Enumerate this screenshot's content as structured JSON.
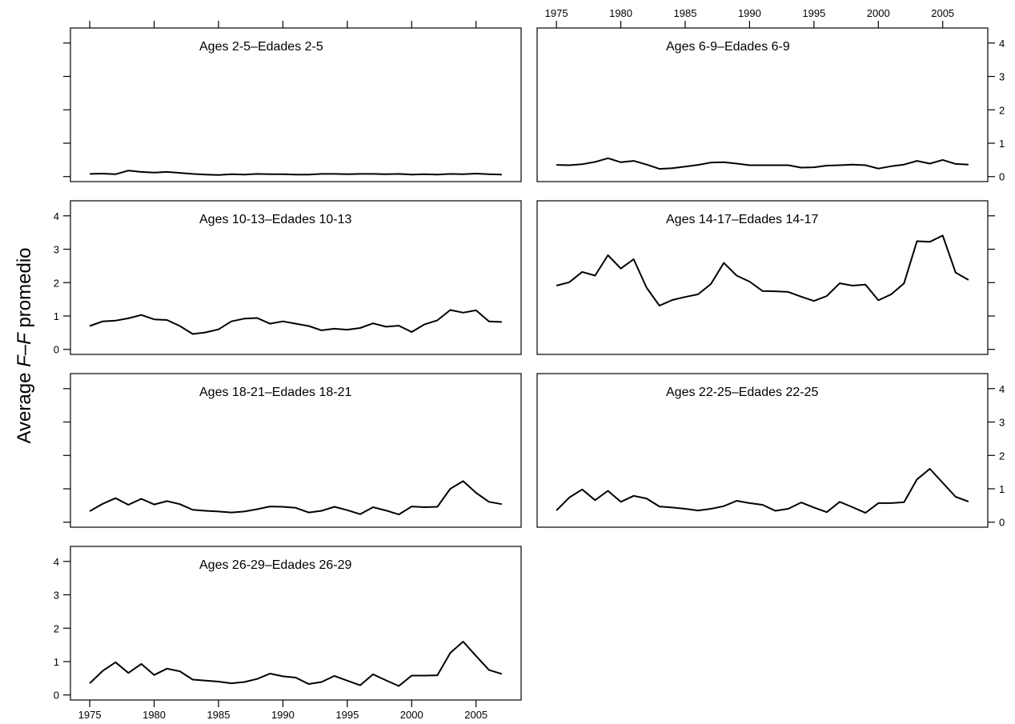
{
  "chart_data": {
    "type": "line",
    "ylabel_parts": [
      "Average ",
      "F",
      "–",
      "F",
      " promedio"
    ],
    "xlim": [
      1973.5,
      2008.5
    ],
    "ylim": [
      -0.15,
      4.45
    ],
    "x_ticks": [
      1975,
      1980,
      1985,
      1990,
      1995,
      2000,
      2005
    ],
    "y_ticks": [
      0,
      1,
      2,
      3,
      4
    ],
    "x": [
      1975,
      1976,
      1977,
      1978,
      1979,
      1980,
      1981,
      1982,
      1983,
      1984,
      1985,
      1986,
      1987,
      1988,
      1989,
      1990,
      1991,
      1992,
      1993,
      1994,
      1995,
      1996,
      1997,
      1998,
      1999,
      2000,
      2001,
      2002,
      2003,
      2004,
      2005,
      2006,
      2007
    ],
    "panels": [
      {
        "title": "Ages 2-5–Edades 2-5",
        "values": [
          0.08,
          0.09,
          0.07,
          0.18,
          0.14,
          0.12,
          0.14,
          0.11,
          0.08,
          0.06,
          0.05,
          0.07,
          0.06,
          0.08,
          0.07,
          0.07,
          0.06,
          0.06,
          0.08,
          0.08,
          0.07,
          0.08,
          0.08,
          0.07,
          0.08,
          0.06,
          0.07,
          0.06,
          0.08,
          0.07,
          0.09,
          0.07,
          0.06
        ]
      },
      {
        "title": "Ages 6-9–Edades 6-9",
        "values": [
          0.35,
          0.34,
          0.37,
          0.44,
          0.55,
          0.43,
          0.47,
          0.36,
          0.23,
          0.25,
          0.3,
          0.35,
          0.42,
          0.43,
          0.39,
          0.34,
          0.34,
          0.34,
          0.34,
          0.27,
          0.28,
          0.33,
          0.34,
          0.36,
          0.34,
          0.24,
          0.31,
          0.36,
          0.47,
          0.39,
          0.5,
          0.38,
          0.36
        ]
      },
      {
        "title": "Ages 10-13–Edades 10-13",
        "values": [
          0.7,
          0.84,
          0.86,
          0.93,
          1.03,
          0.9,
          0.88,
          0.7,
          0.46,
          0.51,
          0.6,
          0.84,
          0.92,
          0.94,
          0.77,
          0.84,
          0.77,
          0.7,
          0.57,
          0.62,
          0.59,
          0.64,
          0.78,
          0.68,
          0.71,
          0.52,
          0.75,
          0.87,
          1.18,
          1.1,
          1.17,
          0.84,
          0.82
        ]
      },
      {
        "title": "Ages 14-17–Edades 14-17",
        "values": [
          1.91,
          2.01,
          2.32,
          2.21,
          2.82,
          2.42,
          2.7,
          1.85,
          1.31,
          1.48,
          1.57,
          1.65,
          1.96,
          2.59,
          2.21,
          2.03,
          1.75,
          1.74,
          1.72,
          1.58,
          1.45,
          1.6,
          1.98,
          1.91,
          1.94,
          1.47,
          1.65,
          1.98,
          3.24,
          3.22,
          3.41,
          2.3,
          2.08
        ]
      },
      {
        "title": "Ages 18-21–Edades 18-21",
        "values": [
          0.33,
          0.55,
          0.72,
          0.52,
          0.7,
          0.53,
          0.63,
          0.54,
          0.37,
          0.34,
          0.32,
          0.29,
          0.32,
          0.39,
          0.47,
          0.46,
          0.43,
          0.29,
          0.34,
          0.46,
          0.36,
          0.24,
          0.45,
          0.35,
          0.23,
          0.47,
          0.45,
          0.46,
          1.0,
          1.23,
          0.88,
          0.61,
          0.54
        ]
      },
      {
        "title": "Ages 22-25–Edades 22-25",
        "values": [
          0.35,
          0.74,
          0.98,
          0.66,
          0.94,
          0.61,
          0.79,
          0.71,
          0.47,
          0.44,
          0.4,
          0.35,
          0.4,
          0.48,
          0.64,
          0.57,
          0.52,
          0.34,
          0.4,
          0.59,
          0.44,
          0.3,
          0.61,
          0.45,
          0.28,
          0.57,
          0.57,
          0.6,
          1.28,
          1.6,
          1.18,
          0.76,
          0.62
        ]
      },
      {
        "title": "Ages 26-29–Edades 26-29",
        "values": [
          0.35,
          0.72,
          0.98,
          0.66,
          0.93,
          0.6,
          0.79,
          0.71,
          0.46,
          0.43,
          0.4,
          0.35,
          0.39,
          0.48,
          0.64,
          0.56,
          0.52,
          0.33,
          0.39,
          0.57,
          0.43,
          0.29,
          0.62,
          0.44,
          0.27,
          0.58,
          0.58,
          0.59,
          1.26,
          1.6,
          1.17,
          0.75,
          0.63
        ]
      }
    ]
  }
}
